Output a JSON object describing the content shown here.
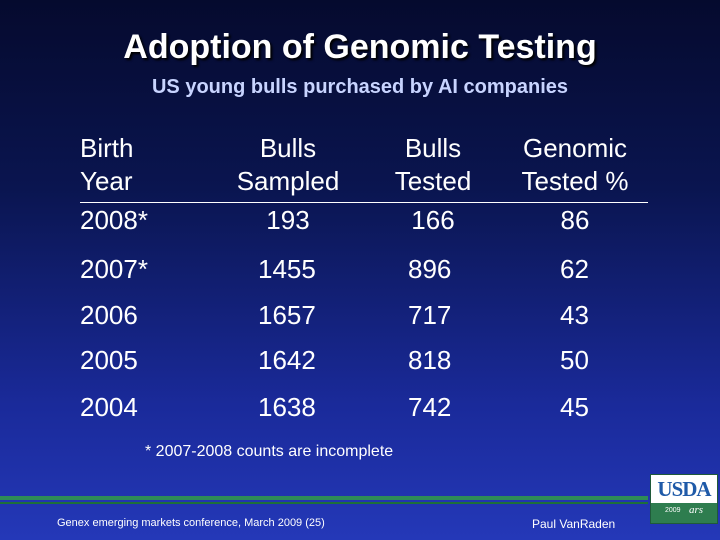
{
  "slide": {
    "title": "Adoption of Genomic Testing",
    "subtitle": "US young bulls purchased by AI companies"
  },
  "table": {
    "headers": [
      {
        "line1": "Birth",
        "line2": "Year"
      },
      {
        "line1": "Bulls",
        "line2": "Sampled"
      },
      {
        "line1": "Bulls",
        "line2": "Tested"
      },
      {
        "line1": "Genomic",
        "line2": "Tested %"
      }
    ],
    "rows": [
      {
        "year": "2008*",
        "sampled": "193",
        "tested": "166",
        "pct": "86"
      },
      {
        "year": "2007*",
        "sampled": "1455",
        "tested": "896",
        "pct": "62"
      },
      {
        "year": "2006",
        "sampled": "1657",
        "tested": "717",
        "pct": "43"
      },
      {
        "year": "2005",
        "sampled": "1642",
        "tested": "818",
        "pct": "50"
      },
      {
        "year": "2004",
        "sampled": "1638",
        "tested": "742",
        "pct": "45"
      }
    ]
  },
  "footnote": "* 2007-2008 counts are incomplete",
  "footer": {
    "left": "Genex emerging markets conference, March 2009 (25)",
    "right": "Paul VanRaden"
  },
  "logo": {
    "text": "USDA",
    "year": "2009",
    "ars": "ars"
  },
  "colors": {
    "background_top": "#050a2e",
    "background_bottom": "#2438b8",
    "subtitle": "#c8d4ff",
    "footer_bar": "#2e8b57"
  }
}
